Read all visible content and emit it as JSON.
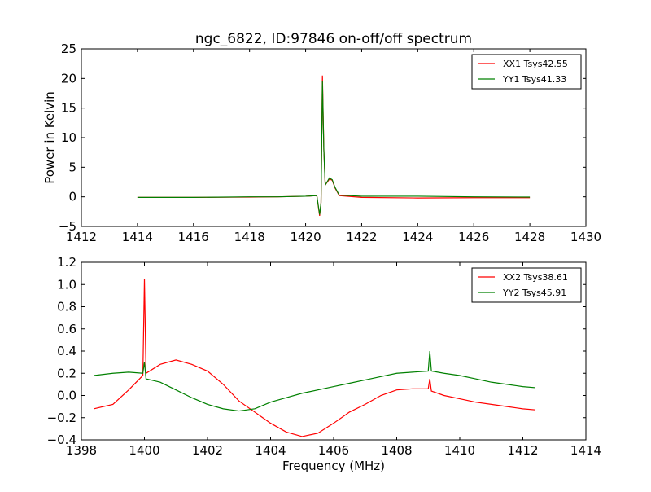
{
  "chart_data": [
    {
      "type": "line",
      "title": "ngc_6822, ID:97846 on-off/off spectrum",
      "xlabel": "",
      "ylabel": "Power in Kelvin",
      "xlim": [
        1412,
        1430
      ],
      "ylim": [
        -5,
        25
      ],
      "xticks": [
        1412,
        1414,
        1416,
        1418,
        1420,
        1422,
        1424,
        1426,
        1428,
        1430
      ],
      "yticks": [
        -5,
        0,
        5,
        10,
        15,
        20,
        25
      ],
      "grid": false,
      "legend_position": "top-right",
      "series": [
        {
          "name": "XX1 Tsys42.55",
          "color": "#ff0000",
          "points": [
            [
              1414.0,
              -0.1
            ],
            [
              1416.0,
              -0.1
            ],
            [
              1418.0,
              -0.05
            ],
            [
              1419.0,
              0.0
            ],
            [
              1420.0,
              0.1
            ],
            [
              1420.4,
              0.2
            ],
            [
              1420.5,
              -3.2
            ],
            [
              1420.55,
              -1.0
            ],
            [
              1420.6,
              20.5
            ],
            [
              1420.65,
              8.0
            ],
            [
              1420.7,
              2.0
            ],
            [
              1420.85,
              3.0
            ],
            [
              1420.95,
              2.8
            ],
            [
              1421.05,
              1.5
            ],
            [
              1421.2,
              0.2
            ],
            [
              1422.0,
              -0.1
            ],
            [
              1424.0,
              -0.2
            ],
            [
              1426.0,
              -0.15
            ],
            [
              1428.0,
              -0.15
            ]
          ]
        },
        {
          "name": "YY1 Tsys41.33",
          "color": "#008000",
          "points": [
            [
              1414.0,
              -0.1
            ],
            [
              1416.0,
              -0.1
            ],
            [
              1418.0,
              0.0
            ],
            [
              1419.0,
              0.0
            ],
            [
              1420.0,
              0.1
            ],
            [
              1420.4,
              0.2
            ],
            [
              1420.5,
              -3.0
            ],
            [
              1420.55,
              -1.0
            ],
            [
              1420.6,
              19.5
            ],
            [
              1420.65,
              8.0
            ],
            [
              1420.7,
              2.0
            ],
            [
              1420.85,
              3.2
            ],
            [
              1420.95,
              2.9
            ],
            [
              1421.05,
              1.6
            ],
            [
              1421.2,
              0.3
            ],
            [
              1422.0,
              0.1
            ],
            [
              1424.0,
              0.1
            ],
            [
              1426.0,
              0.0
            ],
            [
              1428.0,
              -0.05
            ]
          ]
        }
      ]
    },
    {
      "type": "line",
      "title": "",
      "xlabel": "Frequency (MHz)",
      "ylabel": "",
      "xlim": [
        1398,
        1414
      ],
      "ylim": [
        -0.4,
        1.2
      ],
      "xticks": [
        1398,
        1400,
        1402,
        1404,
        1406,
        1408,
        1410,
        1412,
        1414
      ],
      "yticks": [
        -0.4,
        -0.2,
        0.0,
        0.2,
        0.4,
        0.6,
        0.8,
        1.0,
        1.2
      ],
      "grid": false,
      "legend_position": "top-right",
      "series": [
        {
          "name": "XX2 Tsys38.61",
          "color": "#ff0000",
          "points": [
            [
              1398.4,
              -0.12
            ],
            [
              1399.0,
              -0.08
            ],
            [
              1399.5,
              0.05
            ],
            [
              1399.95,
              0.18
            ],
            [
              1400.0,
              1.05
            ],
            [
              1400.05,
              0.2
            ],
            [
              1400.5,
              0.28
            ],
            [
              1401.0,
              0.32
            ],
            [
              1401.5,
              0.28
            ],
            [
              1402.0,
              0.22
            ],
            [
              1402.5,
              0.1
            ],
            [
              1403.0,
              -0.05
            ],
            [
              1403.5,
              -0.15
            ],
            [
              1404.0,
              -0.25
            ],
            [
              1404.5,
              -0.33
            ],
            [
              1405.0,
              -0.37
            ],
            [
              1405.5,
              -0.34
            ],
            [
              1406.0,
              -0.25
            ],
            [
              1406.5,
              -0.15
            ],
            [
              1407.0,
              -0.08
            ],
            [
              1407.5,
              0.0
            ],
            [
              1408.0,
              0.05
            ],
            [
              1408.5,
              0.06
            ],
            [
              1409.0,
              0.06
            ],
            [
              1409.05,
              0.15
            ],
            [
              1409.1,
              0.04
            ],
            [
              1409.5,
              0.0
            ],
            [
              1410.0,
              -0.03
            ],
            [
              1410.5,
              -0.06
            ],
            [
              1411.0,
              -0.08
            ],
            [
              1411.5,
              -0.1
            ],
            [
              1412.0,
              -0.12
            ],
            [
              1412.4,
              -0.13
            ]
          ]
        },
        {
          "name": "YY2 Tsys45.91",
          "color": "#008000",
          "points": [
            [
              1398.4,
              0.18
            ],
            [
              1399.0,
              0.2
            ],
            [
              1399.5,
              0.21
            ],
            [
              1399.95,
              0.2
            ],
            [
              1400.0,
              0.3
            ],
            [
              1400.05,
              0.15
            ],
            [
              1400.5,
              0.12
            ],
            [
              1401.0,
              0.05
            ],
            [
              1401.5,
              -0.02
            ],
            [
              1402.0,
              -0.08
            ],
            [
              1402.5,
              -0.12
            ],
            [
              1403.0,
              -0.14
            ],
            [
              1403.5,
              -0.12
            ],
            [
              1404.0,
              -0.06
            ],
            [
              1404.5,
              -0.02
            ],
            [
              1405.0,
              0.02
            ],
            [
              1405.5,
              0.05
            ],
            [
              1406.0,
              0.08
            ],
            [
              1406.5,
              0.11
            ],
            [
              1407.0,
              0.14
            ],
            [
              1407.5,
              0.17
            ],
            [
              1408.0,
              0.2
            ],
            [
              1408.5,
              0.21
            ],
            [
              1409.0,
              0.22
            ],
            [
              1409.05,
              0.4
            ],
            [
              1409.1,
              0.22
            ],
            [
              1409.5,
              0.2
            ],
            [
              1410.0,
              0.18
            ],
            [
              1410.5,
              0.15
            ],
            [
              1411.0,
              0.12
            ],
            [
              1411.5,
              0.1
            ],
            [
              1412.0,
              0.08
            ],
            [
              1412.4,
              0.07
            ]
          ]
        }
      ]
    }
  ]
}
